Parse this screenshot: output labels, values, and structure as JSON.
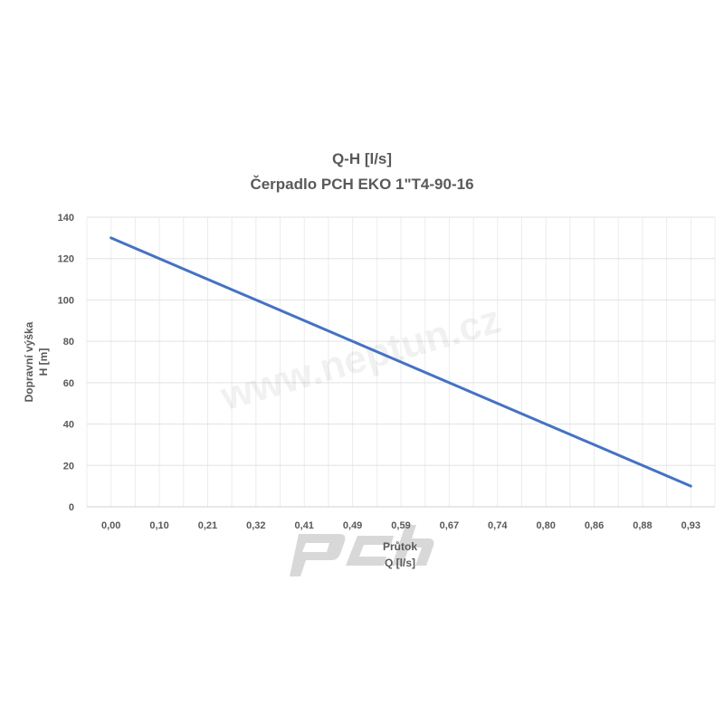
{
  "chart_data": {
    "type": "line",
    "title": "Q-H  [l/s]",
    "subtitle": "Čerpadlo PCH EKO 1\"T4-90-16",
    "xlabel": [
      "Průtok",
      "Q [l/s]"
    ],
    "ylabel": [
      "Dopravní výška",
      "H [m]"
    ],
    "categories": [
      "0,00",
      "0,10",
      "0,21",
      "0,32",
      "0,41",
      "0,49",
      "0,59",
      "0,67",
      "0,74",
      "0,80",
      "0,86",
      "0,88",
      "0,93"
    ],
    "series": [
      {
        "values": [
          130,
          120,
          110,
          100,
          90,
          80,
          70,
          60,
          50,
          40,
          30,
          20,
          10
        ],
        "color": "#4472C4"
      }
    ],
    "ylim": [
      0,
      140
    ],
    "yticks": [
      0,
      20,
      40,
      60,
      80,
      100,
      120,
      140
    ],
    "grid": true,
    "legend": "none"
  },
  "watermark": {
    "text": "www.neptun.cz",
    "logo": "pch"
  }
}
